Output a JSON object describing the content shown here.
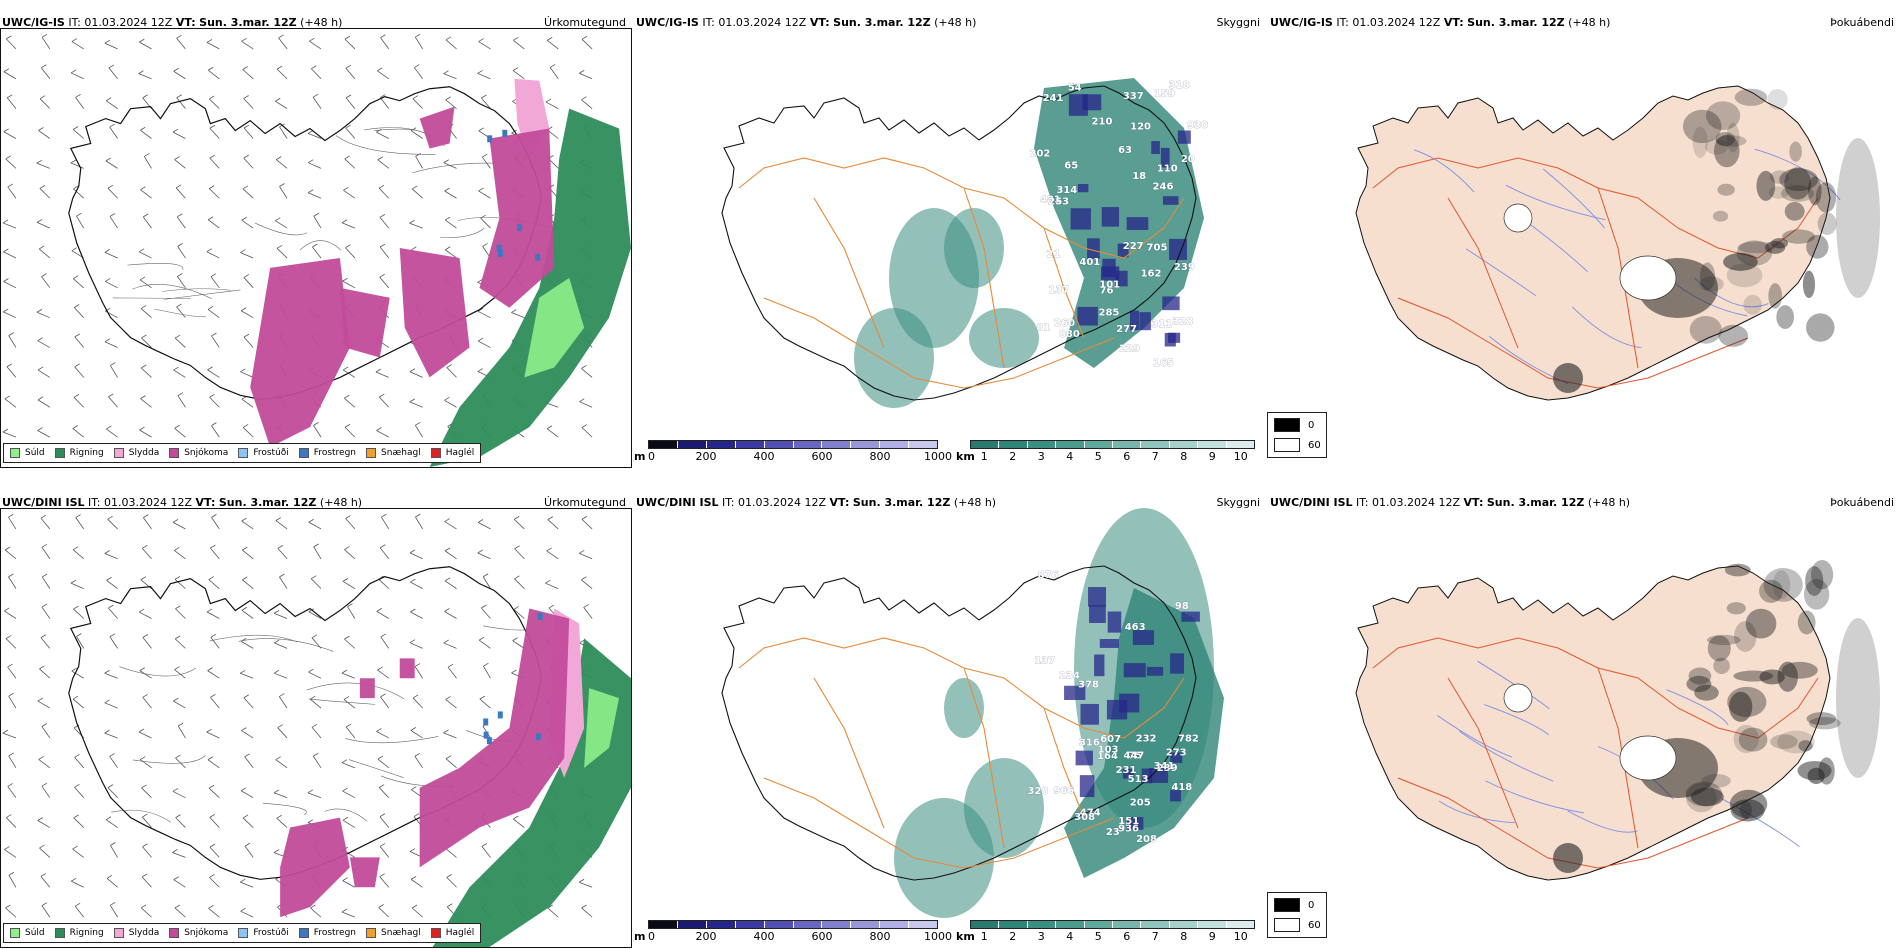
{
  "colors": {
    "coast": "#111111",
    "roads_orange": "#e68a3a",
    "roads_red": "#e2552e",
    "land_fill": "#f6dfcf",
    "rivers": "#7b8fe6",
    "snow": "#c24b9a",
    "sleet": "#f2a8d6",
    "rain": "#2e8c5a",
    "drizzle": "#8ef08a",
    "frost_mist": "#8ec5ee",
    "frost_rain": "#3a78c2",
    "snow_hail": "#f0a030",
    "hail": "#e02020"
  },
  "rows": [
    {
      "model": "UWC/IG-IS",
      "it_label": "IT:",
      "it_value": "01.03.2024 12Z",
      "vt_label": "VT:",
      "vt_value": "Sun. 3.mar. 12Z",
      "lead": "(+48 h)",
      "panels": {
        "precip": {
          "kind": "Úrkomutegund"
        },
        "cloud": {
          "kind": "Skyggni"
        },
        "fog": {
          "kind": "Þokuábendi"
        }
      },
      "cloud_labels": [
        "76",
        "81",
        "101",
        "65",
        "54",
        "120",
        "229",
        "246",
        "227",
        "159",
        "20",
        "18",
        "880",
        "241",
        "137",
        "260",
        "337",
        "210",
        "202",
        "705",
        "311",
        "481",
        "318",
        "63",
        "162",
        "401",
        "21",
        "314",
        "285",
        "110",
        "328",
        "277",
        "239",
        "253",
        "930",
        "165"
      ]
    },
    {
      "model": "UWC/DINI ISL",
      "it_label": "IT:",
      "it_value": "01.03.2024 12Z",
      "vt_label": "VT:",
      "vt_value": "Sun. 3.mar. 12Z",
      "lead": "(+48 h)",
      "panels": {
        "precip": {
          "kind": "Úrkomutegund"
        },
        "cloud": {
          "kind": "Skyggni"
        },
        "fog": {
          "kind": "Þokuábendi"
        }
      },
      "cloud_labels": [
        "98",
        "75",
        "208",
        "164",
        "782",
        "151",
        "513",
        "474",
        "232",
        "239",
        "966",
        "378",
        "308",
        "341",
        "273",
        "607",
        "23",
        "447",
        "463",
        "205",
        "418",
        "876",
        "231",
        "137",
        "234",
        "936",
        "103",
        "316",
        "328"
      ]
    }
  ],
  "precip_legend": [
    {
      "label": "Súld",
      "color": "#8ef08a"
    },
    {
      "label": "Rigning",
      "color": "#2e8c5a"
    },
    {
      "label": "Slydda",
      "color": "#f2a8d6"
    },
    {
      "label": "Snjókoma",
      "color": "#c24b9a"
    },
    {
      "label": "Frostúði",
      "color": "#8ec5ee"
    },
    {
      "label": "Frostregn",
      "color": "#3a78c2"
    },
    {
      "label": "Snæhagl",
      "color": "#f0a030"
    },
    {
      "label": "Haglél",
      "color": "#e02020"
    }
  ],
  "cloud_scale_m": {
    "unit": "m",
    "ticks": [
      "0",
      "200",
      "400",
      "600",
      "800",
      "1000"
    ],
    "colors": [
      "#0a0a14",
      "#1a1a70",
      "#26268a",
      "#3a3aa0",
      "#5050b0",
      "#6868c0",
      "#8080cc",
      "#9898d8",
      "#b0b0e4",
      "#c8c8ee"
    ]
  },
  "cloud_scale_km": {
    "unit": "km",
    "ticks": [
      "1",
      "2",
      "3",
      "4",
      "5",
      "6",
      "7",
      "8",
      "9",
      "10"
    ],
    "colors": [
      "#2a7a70",
      "#2f8478",
      "#3a8e82",
      "#4a9a8e",
      "#60a89c",
      "#78b6ac",
      "#90c4bc",
      "#a8d2cc",
      "#c2e0dc",
      "#dceeec"
    ]
  },
  "fog_legend": [
    {
      "label": "0",
      "color": "#000000"
    },
    {
      "label": "60",
      "color": "#ffffff"
    }
  ]
}
